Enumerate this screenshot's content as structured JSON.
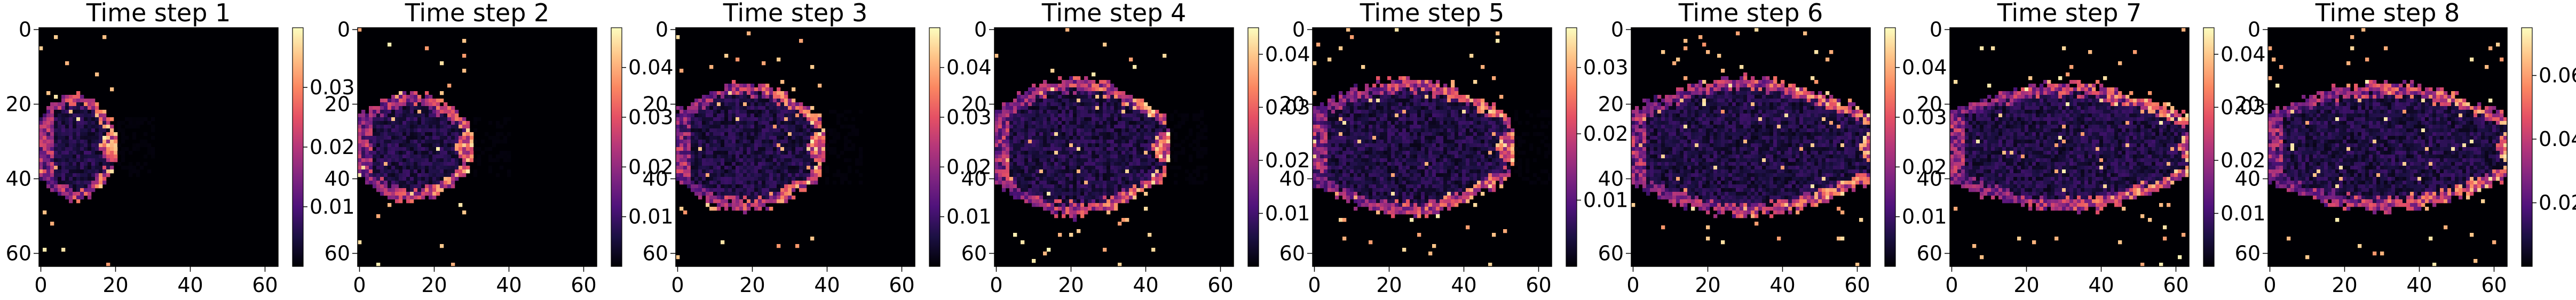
{
  "colormap": "magma",
  "colormap_stops": [
    "#000004",
    "#1c1044",
    "#4f127b",
    "#812581",
    "#b5367a",
    "#e55064",
    "#fb8761",
    "#fec287",
    "#fcfdbf"
  ],
  "chart_data": [
    {
      "type": "heatmap",
      "title": "Time step 1",
      "grid_size": 64,
      "x_ticks": [
        0,
        20,
        40,
        60
      ],
      "y_ticks": [
        0,
        20,
        40,
        60
      ],
      "colorbar": {
        "min": 0.0,
        "max": 0.04,
        "ticks": [
          0.01,
          0.02,
          0.03
        ]
      },
      "plume": {
        "front": 19,
        "halfwidth": 10,
        "peak": 0.039
      }
    },
    {
      "type": "heatmap",
      "title": "Time step 2",
      "grid_size": 64,
      "x_ticks": [
        0,
        20,
        40,
        60
      ],
      "y_ticks": [
        0,
        20,
        40,
        60
      ],
      "colorbar": {
        "min": 0.0,
        "max": 0.048,
        "ticks": [
          0.01,
          0.02,
          0.03,
          0.04
        ]
      },
      "plume": {
        "front": 29,
        "halfwidth": 10,
        "peak": 0.047
      }
    },
    {
      "type": "heatmap",
      "title": "Time step 3",
      "grid_size": 64,
      "x_ticks": [
        0,
        20,
        40,
        60
      ],
      "y_ticks": [
        0,
        20,
        40,
        60
      ],
      "colorbar": {
        "min": 0.0,
        "max": 0.048,
        "ticks": [
          0.01,
          0.02,
          0.03,
          0.04
        ]
      },
      "plume": {
        "front": 38,
        "halfwidth": 12,
        "peak": 0.046
      }
    },
    {
      "type": "heatmap",
      "title": "Time step 4",
      "grid_size": 64,
      "x_ticks": [
        0,
        20,
        40,
        60
      ],
      "y_ticks": [
        0,
        20,
        40,
        60
      ],
      "colorbar": {
        "min": 0.0,
        "max": 0.045,
        "ticks": [
          0.01,
          0.02,
          0.03,
          0.04
        ]
      },
      "plume": {
        "front": 45,
        "halfwidth": 13,
        "peak": 0.044
      }
    },
    {
      "type": "heatmap",
      "title": "Time step 5",
      "grid_size": 64,
      "x_ticks": [
        0,
        20,
        40,
        60
      ],
      "y_ticks": [
        0,
        20,
        40,
        60
      ],
      "colorbar": {
        "min": 0.0,
        "max": 0.036,
        "ticks": [
          0.01,
          0.02,
          0.03
        ]
      },
      "plume": {
        "front": 52,
        "halfwidth": 13,
        "peak": 0.035
      }
    },
    {
      "type": "heatmap",
      "title": "Time step 6",
      "grid_size": 64,
      "x_ticks": [
        0,
        20,
        40,
        60
      ],
      "y_ticks": [
        0,
        20,
        40,
        60
      ],
      "colorbar": {
        "min": 0.0,
        "max": 0.048,
        "ticks": [
          0.01,
          0.02,
          0.03,
          0.04
        ]
      },
      "plume": {
        "front": 64,
        "halfwidth": 13,
        "peak": 0.046
      }
    },
    {
      "type": "heatmap",
      "title": "Time step 7",
      "grid_size": 64,
      "x_ticks": [
        0,
        20,
        40,
        60
      ],
      "y_ticks": [
        0,
        20,
        40,
        60
      ],
      "colorbar": {
        "min": 0.0,
        "max": 0.045,
        "ticks": [
          0.01,
          0.02,
          0.03,
          0.04
        ]
      },
      "plume": {
        "front": 64,
        "halfwidth": 12,
        "peak": 0.044
      }
    },
    {
      "type": "heatmap",
      "title": "Time step 8",
      "grid_size": 64,
      "x_ticks": [
        0,
        20,
        40,
        60
      ],
      "y_ticks": [
        0,
        20,
        40,
        60
      ],
      "colorbar": {
        "min": 0.0,
        "max": 0.075,
        "ticks": [
          0.02,
          0.04,
          0.06
        ]
      },
      "plume": {
        "front": 64,
        "halfwidth": 12,
        "peak": 0.073
      }
    }
  ]
}
